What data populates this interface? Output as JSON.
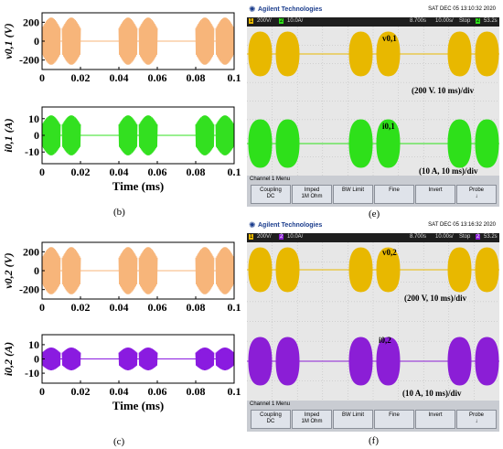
{
  "captions": {
    "b": "(b)",
    "c": "(c)",
    "e": "(e)",
    "f": "(f)"
  },
  "colors": {
    "voltage": "#f7b57a",
    "current_b": "#33e020",
    "current_c": "#8a1be0",
    "scope_yellow": "#e8b800",
    "scope_green": "#2ee01a",
    "scope_purple": "#8b1ed6"
  },
  "chart_data": [
    {
      "type": "line",
      "panel": "b-top",
      "ylabel": "v0,1 (V)",
      "xlabel": "",
      "xlim": [
        0,
        0.1
      ],
      "ylim": [
        -300,
        300
      ],
      "xticks": [
        "0",
        "0.02",
        "0.04",
        "0.06",
        "0.08",
        "0.1"
      ],
      "yticks": [
        "200",
        "0",
        "-200"
      ],
      "amplitude": 250,
      "bursts": [
        [
          0.0,
          0.0095
        ],
        [
          0.0105,
          0.02
        ],
        [
          0.04,
          0.0495
        ],
        [
          0.0505,
          0.06
        ],
        [
          0.08,
          0.0895
        ],
        [
          0.0905,
          0.1
        ]
      ]
    },
    {
      "type": "line",
      "panel": "b-bottom",
      "ylabel": "i0,1 (A)",
      "xlabel": "Time (ms)",
      "xlim": [
        0,
        0.1
      ],
      "ylim": [
        -17,
        17
      ],
      "xticks": [
        "0",
        "0.02",
        "0.04",
        "0.06",
        "0.08",
        "0.1"
      ],
      "yticks": [
        "10",
        "0",
        "-10"
      ],
      "amplitude": 12,
      "bursts": [
        [
          0.0,
          0.0095
        ],
        [
          0.0105,
          0.02
        ],
        [
          0.04,
          0.0495
        ],
        [
          0.0505,
          0.06
        ],
        [
          0.08,
          0.0895
        ],
        [
          0.0905,
          0.1
        ]
      ]
    },
    {
      "type": "line",
      "panel": "c-top",
      "ylabel": "v0,2 (V)",
      "xlabel": "",
      "xlim": [
        0,
        0.1
      ],
      "ylim": [
        -300,
        300
      ],
      "xticks": [
        "0",
        "0.02",
        "0.04",
        "0.06",
        "0.08",
        "0.1"
      ],
      "yticks": [
        "200",
        "0",
        "-200"
      ],
      "amplitude": 250,
      "bursts": [
        [
          0.0,
          0.0095
        ],
        [
          0.0105,
          0.02
        ],
        [
          0.04,
          0.0495
        ],
        [
          0.0505,
          0.06
        ],
        [
          0.08,
          0.0895
        ],
        [
          0.0905,
          0.1
        ]
      ]
    },
    {
      "type": "line",
      "panel": "c-bottom",
      "ylabel": "i0,2 (A)",
      "xlabel": "Time (ms)",
      "xlim": [
        0,
        0.1
      ],
      "ylim": [
        -17,
        17
      ],
      "xticks": [
        "0",
        "0.02",
        "0.04",
        "0.06",
        "0.08",
        "0.1"
      ],
      "yticks": [
        "10",
        "0",
        "-10"
      ],
      "amplitude": 8,
      "bursts": [
        [
          0.0,
          0.0095
        ],
        [
          0.0105,
          0.02
        ],
        [
          0.04,
          0.0495
        ],
        [
          0.0505,
          0.06
        ],
        [
          0.08,
          0.0895
        ],
        [
          0.0905,
          0.1
        ]
      ]
    }
  ],
  "scopes": [
    {
      "id": "e",
      "brand": "Agilent Technologies",
      "date": "SAT DEC 05 13:10:32 2020",
      "status": [
        "1",
        "200V/",
        "2",
        "10.0A/",
        "8.700s",
        "10.00s/",
        "Stop",
        "2",
        "53.2s"
      ],
      "labels": [
        "v0,1",
        "(200 V. 10 ms)/div",
        "i0,1",
        "(10 A, 10 ms)/div"
      ],
      "menu_title": "Channel 1  Menu",
      "softkeys": [
        [
          "Coupling",
          "DC"
        ],
        [
          "Imped",
          "1M Ohm"
        ],
        [
          "BW Limit",
          ""
        ],
        [
          "Fine",
          ""
        ],
        [
          "Invert",
          ""
        ],
        [
          "Probe",
          "↓"
        ]
      ]
    },
    {
      "id": "f",
      "brand": "Agilent Technologies",
      "date": "SAT DEC 05 13:16:32 2020",
      "status": [
        "1",
        "200V/",
        "2",
        "10.0A/",
        "8.700s",
        "10.00s/",
        "Stop",
        "2",
        "53.2s"
      ],
      "labels": [
        "v0,2",
        "(200 V, 10 ms)/div",
        "i0,2",
        "(10 A, 10 ms)/div"
      ],
      "menu_title": "Channel 1  Menu",
      "softkeys": [
        [
          "Coupling",
          "DC"
        ],
        [
          "Imped",
          "1M Ohm"
        ],
        [
          "BW Limit",
          ""
        ],
        [
          "Fine",
          ""
        ],
        [
          "Invert",
          ""
        ],
        [
          "Probe",
          "↓"
        ]
      ]
    }
  ]
}
